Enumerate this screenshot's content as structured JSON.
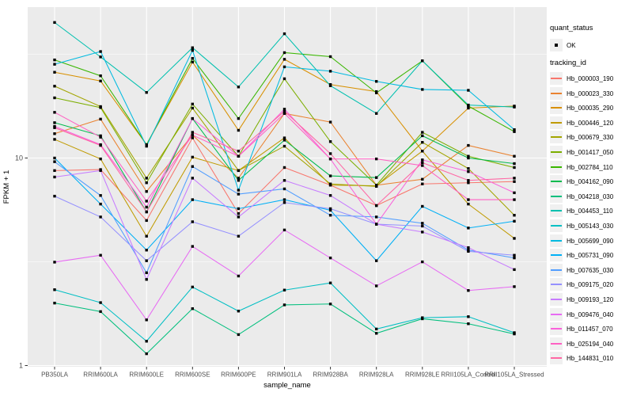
{
  "chart_data": {
    "type": "line",
    "title": "",
    "xlabel": "sample_name",
    "ylabel": "FPKM + 1",
    "y_scale": "log10",
    "ylim": [
      1,
      50
    ],
    "y_major_ticks": [
      1,
      10
    ],
    "y_minor_ticks": [
      3.162,
      31.62
    ],
    "grid": "on",
    "panel_bg": "#ebebeb",
    "grid_color": "#ffffff",
    "point_color": "#000000",
    "tick_label_color": "#4d4d4d",
    "legend_position": "right",
    "categories": [
      "PB350LA",
      "RRIM600LA",
      "RRIM600LE",
      "RRIM600SE",
      "RRIM600PE",
      "RRIM901LA",
      "RRIM928BA",
      "RRIM928LA",
      "RRIM928LE",
      "RRII105LA_Control",
      "RRII105LA_Stressed"
    ],
    "series": [
      {
        "name": "Hb_000003_190",
        "color": "#F8766D",
        "values": [
          8.7,
          8.8,
          5.0,
          12.5,
          5.4,
          9.0,
          7.4,
          5.9,
          7.5,
          7.6,
          7.7
        ]
      },
      {
        "name": "Hb_000023_330",
        "color": "#EA8331",
        "values": [
          13.1,
          15.4,
          6.9,
          12.9,
          8.0,
          16.4,
          14.9,
          7.4,
          7.9,
          11.5,
          10.2
        ]
      },
      {
        "name": "Hb_000035_290",
        "color": "#D89000",
        "values": [
          25.9,
          23.5,
          11.6,
          29.0,
          13.6,
          29.9,
          22.6,
          20.9,
          10.8,
          17.4,
          17.8
        ]
      },
      {
        "name": "Hb_000446_120",
        "color": "#C09B00",
        "values": [
          12.3,
          9.9,
          4.2,
          10.1,
          8.7,
          12.5,
          7.4,
          7.35,
          10.8,
          6.0,
          4.1
        ]
      },
      {
        "name": "Hb_000679_330",
        "color": "#A3A500",
        "values": [
          22.2,
          17.7,
          8.0,
          17.4,
          8.7,
          11.4,
          7.5,
          7.3,
          11.9,
          8.9,
          5.3
        ]
      },
      {
        "name": "Hb_001417_050",
        "color": "#7CAE00",
        "values": [
          19.5,
          17.5,
          7.6,
          18.2,
          10.2,
          24.1,
          12.0,
          7.4,
          13.3,
          10.2,
          9.0
        ]
      },
      {
        "name": "Hb_002784_110",
        "color": "#39B600",
        "values": [
          29.7,
          24.9,
          11.6,
          30.2,
          15.5,
          32.2,
          30.8,
          20.6,
          29.4,
          17.8,
          13.4
        ]
      },
      {
        "name": "Hb_004162_090",
        "color": "#00BB4E",
        "values": [
          14.8,
          12.8,
          5.5,
          15.5,
          7.8,
          12.2,
          8.2,
          8.05,
          12.8,
          10.0,
          9.4
        ]
      },
      {
        "name": "Hb_004218_030",
        "color": "#00BF7D",
        "values": [
          2.0,
          1.82,
          1.14,
          1.88,
          1.41,
          1.96,
          1.98,
          1.43,
          1.68,
          1.59,
          1.42
        ]
      },
      {
        "name": "Hb_004453_110",
        "color": "#00C0AF",
        "values": [
          45.0,
          30.7,
          20.7,
          34.0,
          22.0,
          39.7,
          22.3,
          16.4,
          29.4,
          18.0,
          17.6
        ]
      },
      {
        "name": "Hb_005143_030",
        "color": "#00BFC4",
        "values": [
          2.32,
          2.01,
          1.31,
          2.39,
          1.83,
          2.31,
          2.5,
          1.5,
          1.7,
          1.72,
          1.44
        ]
      },
      {
        "name": "Hb_005699_090",
        "color": "#00BAE0",
        "values": [
          28.3,
          32.6,
          11.4,
          33.0,
          7.0,
          27.5,
          26.2,
          23.4,
          21.4,
          21.2,
          13.7
        ]
      },
      {
        "name": "Hb_005731_090",
        "color": "#00B0F6",
        "values": [
          10.0,
          6.0,
          3.6,
          6.3,
          5.7,
          6.3,
          5.6,
          3.2,
          5.85,
          4.6,
          4.96
        ]
      },
      {
        "name": "Hb_007635_030",
        "color": "#529EFF",
        "values": [
          9.6,
          6.6,
          2.8,
          9.1,
          6.7,
          7.1,
          5.3,
          5.2,
          4.85,
          3.6,
          3.3
        ]
      },
      {
        "name": "Hb_009175_020",
        "color": "#9590FF",
        "values": [
          6.55,
          5.2,
          3.2,
          4.93,
          4.2,
          6.1,
          5.7,
          4.8,
          4.7,
          3.55,
          3.4
        ]
      },
      {
        "name": "Hb_009193_120",
        "color": "#C77CFF",
        "values": [
          8.1,
          8.7,
          2.6,
          8.0,
          5.2,
          7.8,
          6.6,
          4.8,
          4.4,
          3.7,
          2.9
        ]
      },
      {
        "name": "Hb_009476_040",
        "color": "#E76BF3",
        "values": [
          3.15,
          3.4,
          1.66,
          3.75,
          2.7,
          4.5,
          3.3,
          2.42,
          3.16,
          2.3,
          2.4
        ]
      },
      {
        "name": "Hb_011457_070",
        "color": "#FA62DB",
        "values": [
          14.2,
          11.6,
          5.8,
          15.5,
          10.2,
          17.2,
          9.9,
          4.8,
          9.8,
          8.6,
          6.8
        ]
      },
      {
        "name": "Hb_025194_040",
        "color": "#FF61C3",
        "values": [
          16.6,
          12.6,
          6.2,
          12.9,
          10.2,
          16.4,
          9.9,
          9.9,
          9.2,
          6.3,
          6.3
        ]
      },
      {
        "name": "Hb_144831_010",
        "color": "#FF67A4",
        "values": [
          14.0,
          11.5,
          5.5,
          13.3,
          10.8,
          16.8,
          10.5,
          5.9,
          9.5,
          7.8,
          8.0
        ]
      }
    ],
    "legend": {
      "quant_status_title": "quant_status",
      "quant_status_items": [
        "OK"
      ],
      "tracking_id_title": "tracking_id"
    }
  }
}
